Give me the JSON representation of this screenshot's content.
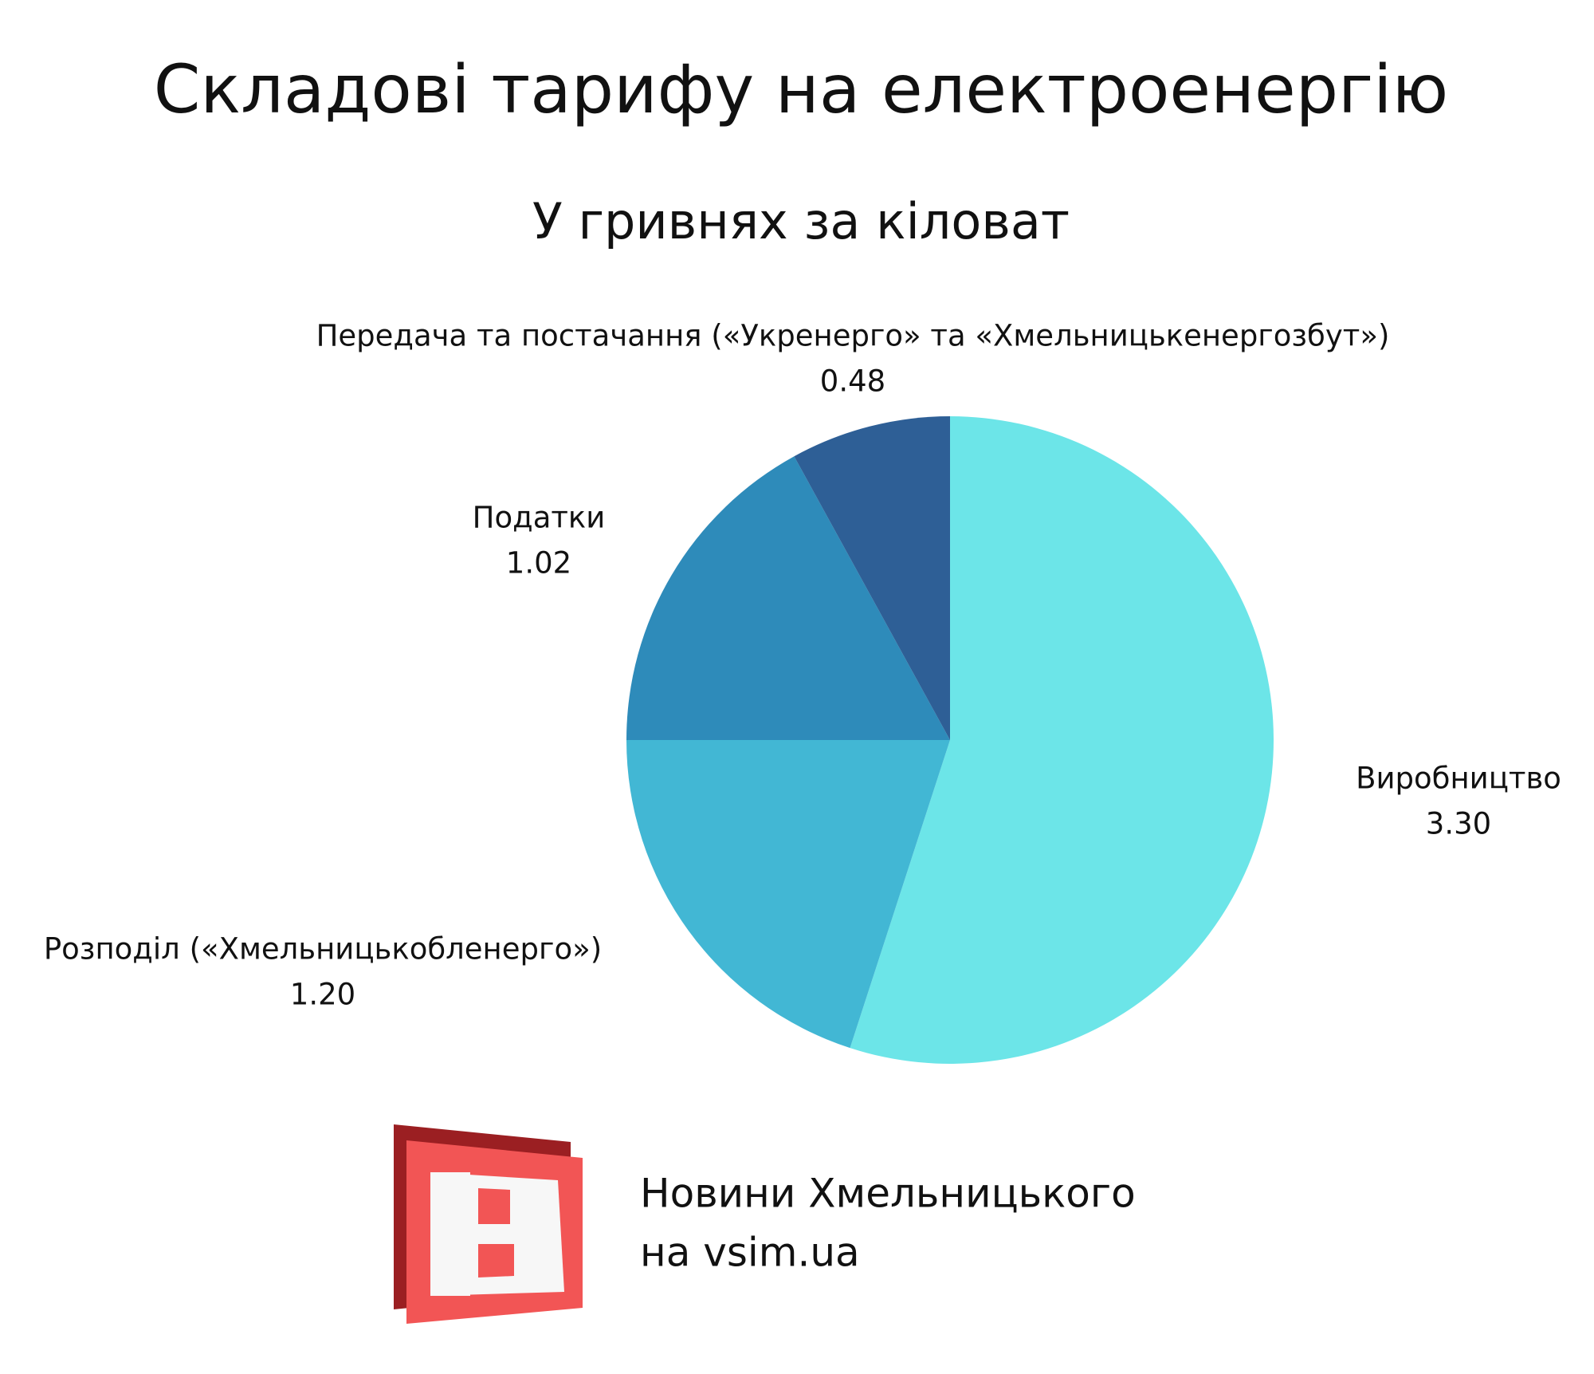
{
  "chart_data": {
    "type": "pie",
    "title": "Складові тарифу на електроенергію",
    "subtitle": "У гривнях за кіловат",
    "categories": [
      "Виробництво",
      "Розподіл («Хмельницькобленерго»)",
      "Податки",
      "Передача та постачання («Укренерго» та «Хмельницькенергозбут»)"
    ],
    "values": [
      3.3,
      1.2,
      1.02,
      0.48
    ],
    "value_labels": [
      "3.30",
      "1.20",
      "1.02",
      "0.48"
    ],
    "colors": [
      "#6ce5e8",
      "#42b7d4",
      "#2e8bba",
      "#2e5f96"
    ]
  },
  "footer": {
    "line1": "Новини Хмельницького",
    "line2": "на vsim.ua"
  }
}
